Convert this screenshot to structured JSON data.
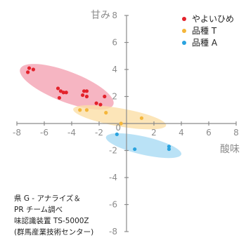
{
  "chart_data": {
    "type": "scatter",
    "title": "",
    "xlabel": "酸味",
    "ylabel": "甘み",
    "xlim": [
      -8,
      8
    ],
    "ylim": [
      -8,
      8
    ],
    "xticks": [
      -8,
      -6,
      -4,
      -2,
      2,
      4,
      6,
      8
    ],
    "yticks": [
      8,
      6,
      4,
      2,
      0,
      -2,
      -4,
      -6,
      -8
    ],
    "grid": false,
    "legend": {
      "position": "top-right"
    },
    "axis_color": "#8c8c8c",
    "series": [
      {
        "name": "やよいひめ",
        "color": "#e3222b",
        "region_color": "#f4a3b3",
        "points": [
          [
            -7.1,
            4.1
          ],
          [
            -6.8,
            4.0
          ],
          [
            -7.2,
            3.8
          ],
          [
            -5.0,
            2.6
          ],
          [
            -4.8,
            2.4
          ],
          [
            -4.6,
            2.3
          ],
          [
            -4.9,
            1.9
          ],
          [
            -4.4,
            2.3
          ],
          [
            -3.1,
            2.4
          ],
          [
            -2.9,
            2.4
          ],
          [
            -3.2,
            2.1
          ],
          [
            -2.9,
            2.0
          ],
          [
            -2.2,
            1.5
          ],
          [
            -1.9,
            1.4
          ],
          [
            -1.6,
            2.0
          ]
        ]
      },
      {
        "name": "品種 T",
        "color": "#f4b63a",
        "region_color": "#fbdfa6",
        "points": [
          [
            -3.4,
            1.0
          ],
          [
            -2.9,
            1.0
          ],
          [
            -1.5,
            0.8
          ],
          [
            -0.4,
            0.0
          ],
          [
            1.1,
            0.4
          ]
        ]
      },
      {
        "name": "品種 A",
        "color": "#2aa3df",
        "region_color": "#a9dbf4",
        "points": [
          [
            -0.7,
            -0.8
          ],
          [
            0.6,
            -1.9
          ],
          [
            3.1,
            -1.7
          ],
          [
            3.1,
            -1.9
          ]
        ]
      }
    ],
    "annotations": [
      "県 G - アナライズ＆",
      "PR チーム調べ",
      "味認識装置 TS-5000Z",
      "(群馬産業技術センター)"
    ]
  }
}
